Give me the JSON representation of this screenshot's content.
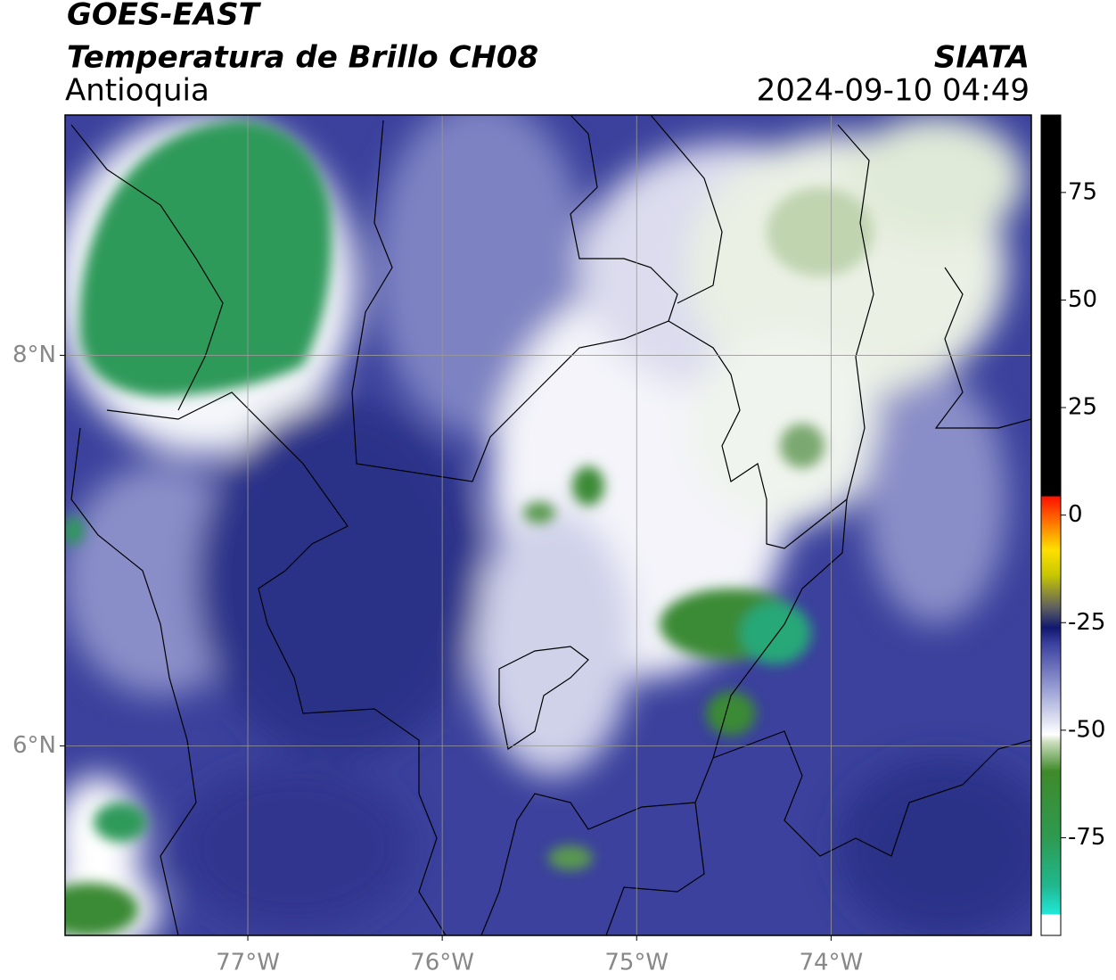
{
  "map": {
    "title": "GOES-EAST",
    "subtitle": "Temperatura de Brillo CH08",
    "region": "Antioquia",
    "source": "SIATA",
    "timestamp": "2024-09-10 04:49",
    "xlim": [
      -77.94,
      -72.97
    ],
    "ylim": [
      5.03,
      9.23
    ],
    "xticks": [
      {
        "value": -77,
        "label": "77°W"
      },
      {
        "value": -76,
        "label": "76°W"
      },
      {
        "value": -75,
        "label": "75°W"
      },
      {
        "value": -74,
        "label": "74°W"
      }
    ],
    "yticks": [
      {
        "value": 8,
        "label": "8°N"
      },
      {
        "value": 6,
        "label": "6°N"
      }
    ],
    "grid": true,
    "colorbar": {
      "lim": [
        -97.7,
        93
      ],
      "ticks": [
        75,
        50,
        25,
        0,
        -25,
        -50,
        -75
      ]
    }
  }
}
